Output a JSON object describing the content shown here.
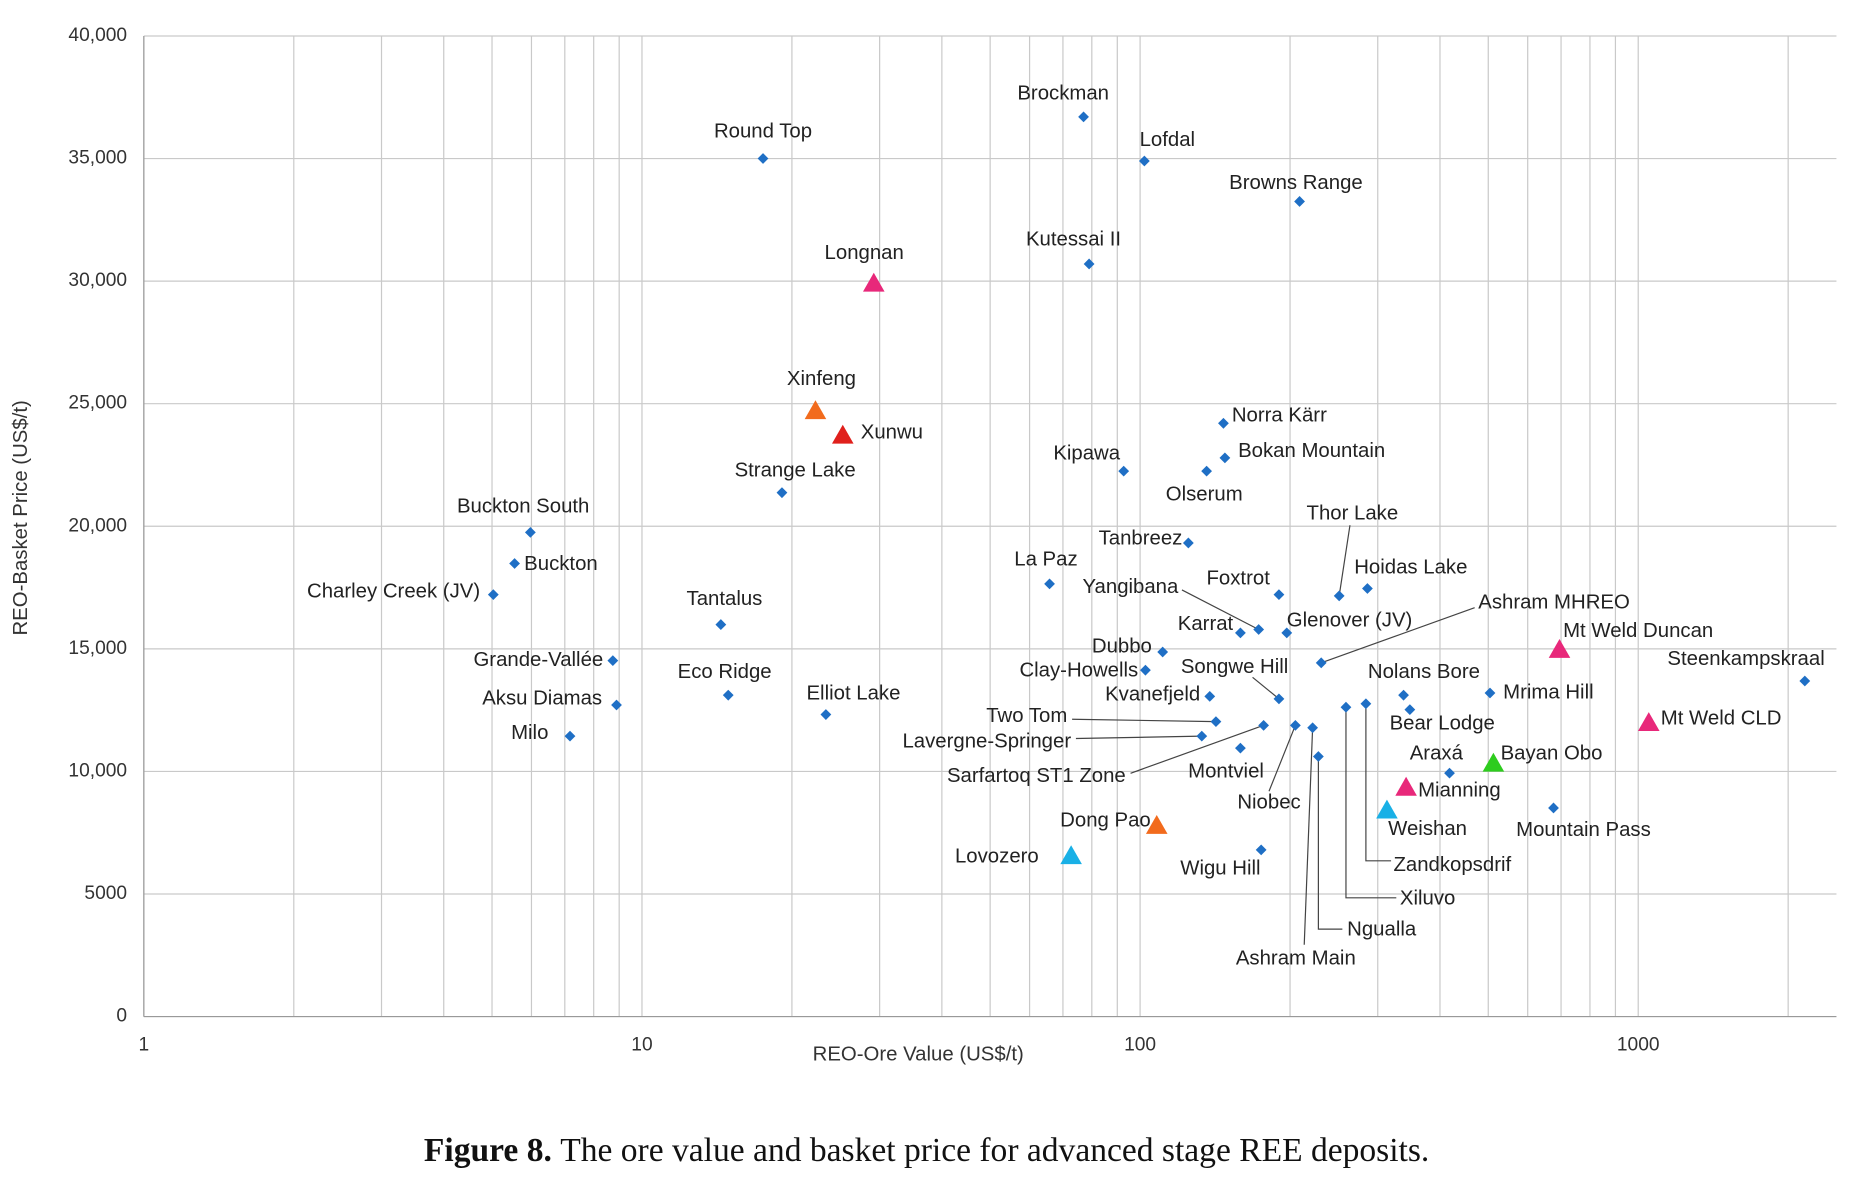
{
  "chart_data": {
    "type": "scatter",
    "xlabel": "REO-Ore Value (US$/t)",
    "ylabel": "REO-Basket Price (US$/t)",
    "xscale": "log",
    "xlim": [
      1,
      2500
    ],
    "ylim": [
      0,
      40000
    ],
    "xticks": [
      1,
      10,
      100,
      1000
    ],
    "xminorticks": [
      2,
      3,
      4,
      5,
      6,
      7,
      8,
      9,
      20,
      30,
      40,
      50,
      60,
      70,
      80,
      90,
      200,
      300,
      400,
      500,
      600,
      700,
      800,
      900,
      2000
    ],
    "yticks": [
      0,
      5000,
      {
        "value": 10000,
        "label": "10,000"
      },
      {
        "value": 15000,
        "label": "15,000"
      },
      {
        "value": 20000,
        "label": "20,000"
      },
      {
        "value": 25000,
        "label": "25,000"
      },
      {
        "value": 30000,
        "label": "30,000"
      },
      {
        "value": 35000,
        "label": "35,000"
      },
      {
        "value": 40000,
        "label": "40,000"
      }
    ],
    "grid": true,
    "points": [
      {
        "label": "Round Top",
        "x": 17.5,
        "y": 35000,
        "marker": "diamond",
        "color": "#1f6fc5"
      },
      {
        "label": "Brockman",
        "x": 77,
        "y": 36700,
        "marker": "diamond",
        "color": "#1f6fc5"
      },
      {
        "label": "Lofdal",
        "x": 102,
        "y": 34900,
        "marker": "diamond",
        "color": "#1f6fc5"
      },
      {
        "label": "Browns Range",
        "x": 209,
        "y": 33250,
        "marker": "diamond",
        "color": "#1f6fc5"
      },
      {
        "label": "Kutessai II",
        "x": 79,
        "y": 30700,
        "marker": "diamond",
        "color": "#1f6fc5"
      },
      {
        "label": "Longnan",
        "x": 29.2,
        "y": 29900,
        "marker": "triangle",
        "color": "#e8287a"
      },
      {
        "label": "Xinfeng",
        "x": 22.3,
        "y": 24700,
        "marker": "triangle",
        "color": "#f26b1d"
      },
      {
        "label": "Xunwu",
        "x": 25.3,
        "y": 23700,
        "marker": "triangle",
        "color": "#e0201c"
      },
      {
        "label": "Strange Lake",
        "x": 19.1,
        "y": 21370,
        "marker": "diamond",
        "color": "#1f6fc5"
      },
      {
        "label": "Norra Kärr",
        "x": 147,
        "y": 24200,
        "marker": "diamond",
        "color": "#1f6fc5"
      },
      {
        "label": "Bokan Mountain",
        "x": 148,
        "y": 22790,
        "marker": "diamond",
        "color": "#1f6fc5"
      },
      {
        "label": "Kipawa",
        "x": 92.7,
        "y": 22250,
        "marker": "diamond",
        "color": "#1f6fc5"
      },
      {
        "label": "Olserum",
        "x": 136,
        "y": 22250,
        "marker": "diamond",
        "color": "#1f6fc5"
      },
      {
        "label": "Buckton South",
        "x": 5.97,
        "y": 19750,
        "marker": "diamond",
        "color": "#1f6fc5"
      },
      {
        "label": "Buckton",
        "x": 5.55,
        "y": 18480,
        "marker": "diamond",
        "color": "#1f6fc5"
      },
      {
        "label": "Charley Creek (JV)",
        "x": 5.03,
        "y": 17210,
        "marker": "diamond",
        "color": "#1f6fc5"
      },
      {
        "label": "Tanbreez",
        "x": 125,
        "y": 19320,
        "marker": "diamond",
        "color": "#1f6fc5"
      },
      {
        "label": "La Paz",
        "x": 65.8,
        "y": 17650,
        "marker": "diamond",
        "color": "#1f6fc5"
      },
      {
        "label": "Thor Lake",
        "x": 251,
        "y": 17160,
        "marker": "diamond",
        "color": "#1f6fc5"
      },
      {
        "label": "Hoidas Lake",
        "x": 286,
        "y": 17460,
        "marker": "diamond",
        "color": "#1f6fc5"
      },
      {
        "label": "Foxtrot",
        "x": 190,
        "y": 17210,
        "marker": "diamond",
        "color": "#1f6fc5"
      },
      {
        "label": "Yangibana",
        "x": 173,
        "y": 15790,
        "marker": "diamond",
        "color": "#1f6fc5"
      },
      {
        "label": "Karrat",
        "x": 159,
        "y": 15650,
        "marker": "diamond",
        "color": "#1f6fc5"
      },
      {
        "label": "Glenover (JV)",
        "x": 197,
        "y": 15650,
        "marker": "diamond",
        "color": "#1f6fc5"
      },
      {
        "label": "Tantalus",
        "x": 14.4,
        "y": 15990,
        "marker": "diamond",
        "color": "#1f6fc5"
      },
      {
        "label": "Ashram MHREO",
        "x": 231,
        "y": 14430,
        "marker": "diamond",
        "color": "#1f6fc5"
      },
      {
        "label": "Mt Weld Duncan",
        "x": 695,
        "y": 14960,
        "marker": "triangle",
        "color": "#e8287a"
      },
      {
        "label": "Steenkampskraal",
        "x": 2160,
        "y": 13690,
        "marker": "diamond",
        "color": "#1f6fc5"
      },
      {
        "label": "Grande-Vallée",
        "x": 8.74,
        "y": 14520,
        "marker": "diamond",
        "color": "#1f6fc5"
      },
      {
        "label": "Dubbo",
        "x": 111,
        "y": 14870,
        "marker": "diamond",
        "color": "#1f6fc5"
      },
      {
        "label": "Clay-Howells",
        "x": 102.5,
        "y": 14130,
        "marker": "diamond",
        "color": "#1f6fc5"
      },
      {
        "label": "Songwe Hill",
        "x": 190,
        "y": 12960,
        "marker": "diamond",
        "color": "#1f6fc5"
      },
      {
        "label": "Kvanefjeld",
        "x": 138,
        "y": 13060,
        "marker": "diamond",
        "color": "#1f6fc5"
      },
      {
        "label": "Eco Ridge",
        "x": 14.9,
        "y": 13110,
        "marker": "diamond",
        "color": "#1f6fc5"
      },
      {
        "label": "Aksu Diamas",
        "x": 8.89,
        "y": 12710,
        "marker": "diamond",
        "color": "#1f6fc5"
      },
      {
        "label": "Nolans Bore",
        "x": 338,
        "y": 13110,
        "marker": "diamond",
        "color": "#1f6fc5"
      },
      {
        "label": "Bear Lodge",
        "x": 348,
        "y": 12520,
        "marker": "diamond",
        "color": "#1f6fc5"
      },
      {
        "label": "Mrima Hill",
        "x": 504,
        "y": 13200,
        "marker": "diamond",
        "color": "#1f6fc5"
      },
      {
        "label": "Zandkopsdrif",
        "x": 284,
        "y": 12760,
        "marker": "diamond",
        "color": "#1f6fc5"
      },
      {
        "label": "Xiluvo",
        "x": 259,
        "y": 12620,
        "marker": "diamond",
        "color": "#1f6fc5"
      },
      {
        "label": "Elliot Lake",
        "x": 23.4,
        "y": 12320,
        "marker": "diamond",
        "color": "#1f6fc5"
      },
      {
        "label": "Two Tom",
        "x": 142,
        "y": 12030,
        "marker": "diamond",
        "color": "#1f6fc5"
      },
      {
        "label": "Niobec",
        "x": 205,
        "y": 11880,
        "marker": "diamond",
        "color": "#1f6fc5"
      },
      {
        "label": "Ashram Main",
        "x": 222,
        "y": 11780,
        "marker": "diamond",
        "color": "#1f6fc5"
      },
      {
        "label": "Sarfartoq ST1 Zone",
        "x": 177,
        "y": 11880,
        "marker": "diamond",
        "color": "#1f6fc5"
      },
      {
        "label": "Lavergne-Springer",
        "x": 133,
        "y": 11440,
        "marker": "diamond",
        "color": "#1f6fc5"
      },
      {
        "label": "Milo",
        "x": 7.17,
        "y": 11440,
        "marker": "diamond",
        "color": "#1f6fc5"
      },
      {
        "label": "Mt Weld CLD",
        "x": 1050,
        "y": 11980,
        "marker": "triangle",
        "color": "#e8287a"
      },
      {
        "label": "Montviel",
        "x": 159,
        "y": 10950,
        "marker": "diamond",
        "color": "#1f6fc5"
      },
      {
        "label": "Ngualla",
        "x": 228,
        "y": 10610,
        "marker": "diamond",
        "color": "#1f6fc5"
      },
      {
        "label": "Araxá",
        "x": 418,
        "y": 9930,
        "marker": "diamond",
        "color": "#1f6fc5"
      },
      {
        "label": "Bayan Obo",
        "x": 512,
        "y": 10320,
        "marker": "triangle",
        "color": "#2ecc1e"
      },
      {
        "label": "Mianning",
        "x": 342,
        "y": 9340,
        "marker": "triangle",
        "color": "#e8287a"
      },
      {
        "label": "Weishan",
        "x": 313,
        "y": 8410,
        "marker": "triangle",
        "color": "#19b0e6"
      },
      {
        "label": "Mountain Pass",
        "x": 676,
        "y": 8510,
        "marker": "diamond",
        "color": "#1f6fc5"
      },
      {
        "label": "Dong Pao",
        "x": 108,
        "y": 7780,
        "marker": "triangle",
        "color": "#f26b1d"
      },
      {
        "label": "Lovozero",
        "x": 72.7,
        "y": 6550,
        "marker": "triangle",
        "color": "#19b0e6"
      },
      {
        "label": "Wigu Hill",
        "x": 175,
        "y": 6800,
        "marker": "diamond",
        "color": "#1f6fc5"
      }
    ]
  },
  "caption": {
    "label": "Figure 8.",
    "text": "The ore value and basket price for advanced stage REE deposits."
  }
}
